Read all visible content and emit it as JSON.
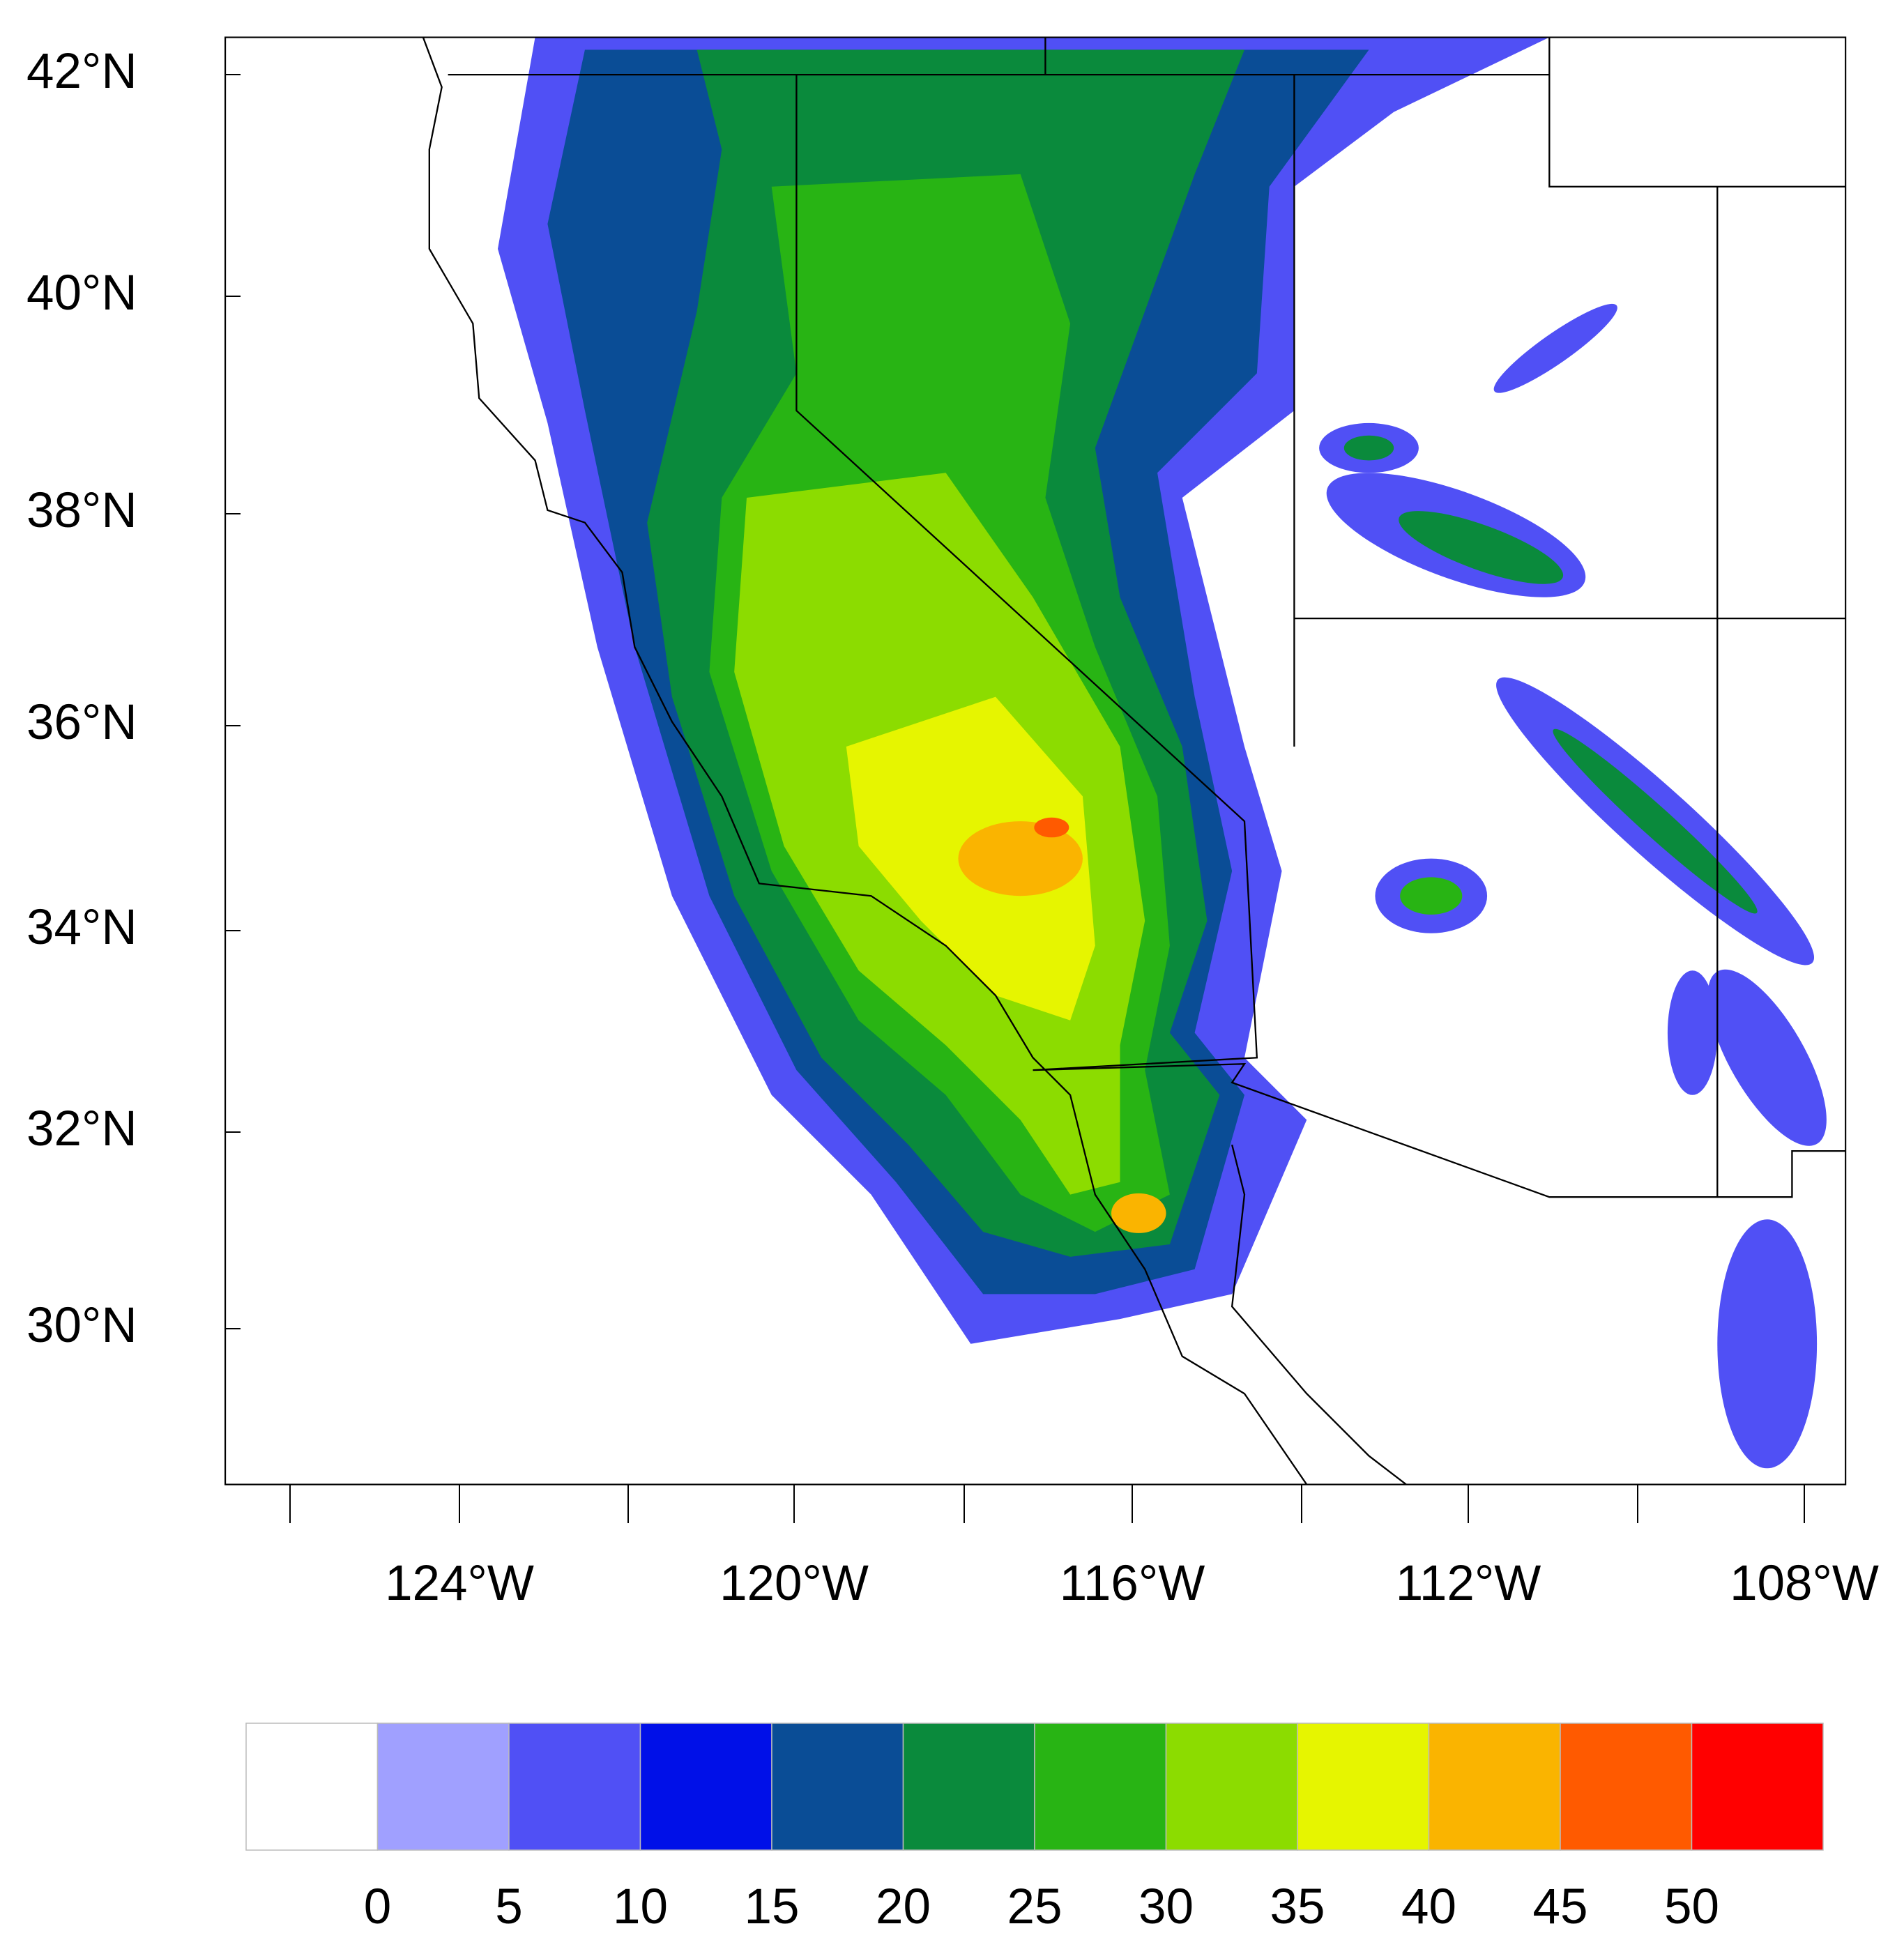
{
  "map": {
    "lat_ticks": [
      "42°N",
      "40°N",
      "38°N",
      "36°N",
      "34°N",
      "32°N",
      "30°N"
    ],
    "lon_ticks": [
      "124°W",
      "120°W",
      "116°W",
      "112°W",
      "108°W"
    ],
    "colorbar": {
      "labels": [
        "0",
        "5",
        "10",
        "15",
        "20",
        "25",
        "30",
        "35",
        "40",
        "45",
        "50"
      ],
      "colors": [
        "#ffffff",
        "#a0a0ff",
        "#5050f5",
        "#0010e8",
        "#0a4d96",
        "#0a8a3c",
        "#28b414",
        "#8cdc00",
        "#e6f500",
        "#fab400",
        "#ff5a00",
        "#ff0000"
      ]
    }
  }
}
